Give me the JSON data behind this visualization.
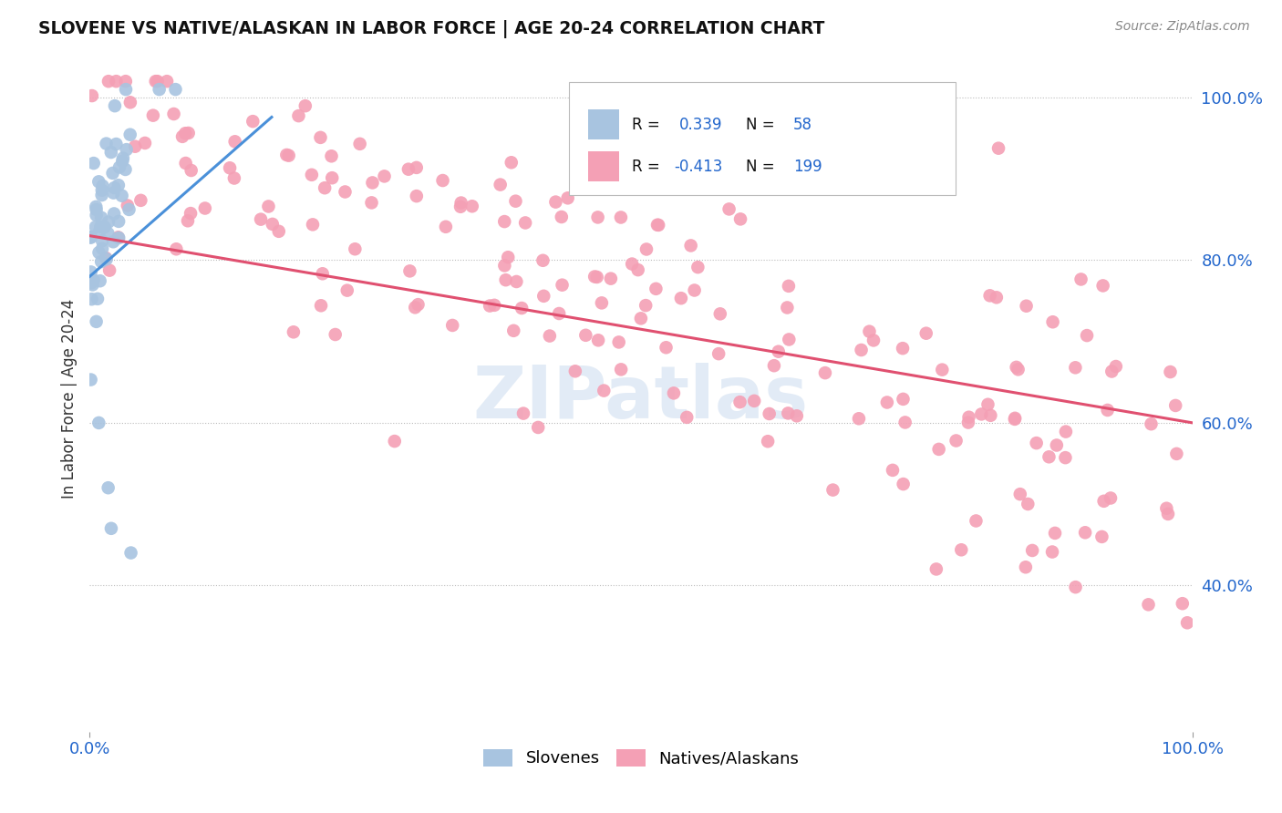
{
  "title": "SLOVENE VS NATIVE/ALASKAN IN LABOR FORCE | AGE 20-24 CORRELATION CHART",
  "source": "Source: ZipAtlas.com",
  "ylabel": "In Labor Force | Age 20-24",
  "slovene_color": "#a8c4e0",
  "native_color": "#f4a0b5",
  "trendline_slovene_color": "#4a90d9",
  "trendline_native_color": "#e05070",
  "background_color": "#ffffff",
  "watermark": "ZIPatlas",
  "watermark_color": "#d0dff0",
  "ymin": 0.22,
  "ymax": 1.04,
  "xmin": 0.0,
  "xmax": 1.0,
  "ytick_vals": [
    0.4,
    0.6,
    0.8,
    1.0
  ],
  "ytick_labels": [
    "40.0%",
    "60.0%",
    "80.0%",
    "100.0%"
  ],
  "xtick_vals": [
    0.0,
    1.0
  ],
  "xtick_labels": [
    "0.0%",
    "100.0%"
  ],
  "legend_r1": "R =  0.339",
  "legend_n1": "N =  58",
  "legend_r2": "R = -0.413",
  "legend_n2": "N = 199"
}
